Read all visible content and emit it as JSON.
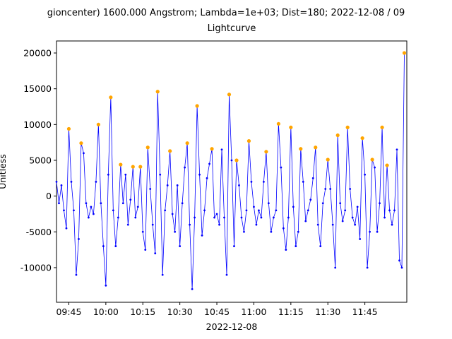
{
  "chart_data": {
    "type": "line",
    "title": "gioncenter) 1600.000 Angstrom; Lambda=1e+03; Dist=180; 2022-12-08 / 09",
    "subtitle": "Lightcurve",
    "xlabel": "2022-12-08",
    "ylabel": "Unitless",
    "x": [
      "09:40",
      "09:41",
      "09:42",
      "09:43",
      "09:44",
      "09:45",
      "09:46",
      "09:47",
      "09:48",
      "09:49",
      "09:50",
      "09:51",
      "09:52",
      "09:53",
      "09:54",
      "09:55",
      "09:56",
      "09:57",
      "09:58",
      "09:59",
      "10:00",
      "10:01",
      "10:02",
      "10:03",
      "10:04",
      "10:05",
      "10:06",
      "10:07",
      "10:08",
      "10:09",
      "10:10",
      "10:11",
      "10:12",
      "10:13",
      "10:14",
      "10:15",
      "10:16",
      "10:17",
      "10:18",
      "10:19",
      "10:20",
      "10:21",
      "10:22",
      "10:23",
      "10:24",
      "10:25",
      "10:26",
      "10:27",
      "10:28",
      "10:29",
      "10:30",
      "10:31",
      "10:32",
      "10:33",
      "10:34",
      "10:35",
      "10:36",
      "10:37",
      "10:38",
      "10:39",
      "10:40",
      "10:41",
      "10:42",
      "10:43",
      "10:44",
      "10:45",
      "10:46",
      "10:47",
      "10:48",
      "10:49",
      "10:50",
      "10:51",
      "10:52",
      "10:53",
      "10:54",
      "10:55",
      "10:56",
      "10:57",
      "10:58",
      "10:59",
      "11:00",
      "11:01",
      "11:02",
      "11:03",
      "11:04",
      "11:05",
      "11:06",
      "11:07",
      "11:08",
      "11:09",
      "11:10",
      "11:11",
      "11:12",
      "11:13",
      "11:14",
      "11:15",
      "11:16",
      "11:17",
      "11:18",
      "11:19",
      "11:20",
      "11:21",
      "11:22",
      "11:23",
      "11:24",
      "11:25",
      "11:26",
      "11:27",
      "11:28",
      "11:29",
      "11:30",
      "11:31",
      "11:32",
      "11:33",
      "11:34",
      "11:35",
      "11:36",
      "11:37",
      "11:38",
      "11:39",
      "11:40",
      "11:41",
      "11:42",
      "11:43",
      "11:44",
      "11:45",
      "11:46",
      "11:47",
      "11:48",
      "11:49",
      "11:50",
      "11:51",
      "11:52",
      "11:53",
      "11:54",
      "11:55",
      "11:56",
      "11:57",
      "11:58",
      "11:59",
      "12:00",
      "12:01"
    ],
    "series": [
      {
        "color": "#0000ff",
        "values": [
          2000,
          -1000,
          1500,
          -2000,
          -4500,
          9400,
          2000,
          -2000,
          -11000,
          -6000,
          7400,
          6000,
          -1000,
          -3000,
          -1500,
          -2500,
          2000,
          10000,
          -1000,
          -7000,
          -12500,
          3000,
          13800,
          -2000,
          -7000,
          -3000,
          4400,
          -1000,
          3000,
          -4000,
          -500,
          4100,
          -3000,
          -1500,
          4100,
          -5000,
          -7500,
          6800,
          1000,
          -4000,
          -8000,
          14600,
          3000,
          -11000,
          -2000,
          1500,
          6300,
          -2500,
          -5000,
          1500,
          -7000,
          -1000,
          4000,
          7400,
          -4000,
          -13000,
          -3000,
          12600,
          3000,
          -5500,
          -2000,
          2500,
          4500,
          6600,
          -3000,
          -2500,
          -4000,
          6500,
          -3000,
          -11000,
          14200,
          5000,
          -7000,
          5000,
          1500,
          -3000,
          -5000,
          -2000,
          7700,
          2000,
          -1500,
          -4000,
          -2000,
          -3000,
          2000,
          6200,
          -1000,
          -5000,
          -3000,
          -2000,
          10100,
          4000,
          -4500,
          -7500,
          -3000,
          9600,
          -1500,
          -7000,
          -5000,
          6600,
          2000,
          -3500,
          -2000,
          -500,
          2500,
          6800,
          -4000,
          -7000,
          -1000,
          1000,
          5100,
          1000,
          -4000,
          -10000,
          8500,
          -1000,
          -3500,
          -2000,
          9600,
          1000,
          -3000,
          -4000,
          -1500,
          -6000,
          8100,
          3000,
          -10000,
          -5000,
          5100,
          4000,
          -5000,
          -1000,
          9600,
          -3000,
          4300,
          -2000,
          -4000,
          -2000,
          6500,
          -9000,
          -10000,
          20000
        ]
      },
      {
        "color": "#ffa500",
        "x": [
          "09:45",
          "09:50",
          "09:57",
          "10:02",
          "10:06",
          "10:11",
          "10:14",
          "10:17",
          "10:21",
          "10:26",
          "10:33",
          "10:37",
          "10:43",
          "10:50",
          "10:53",
          "10:58",
          "11:05",
          "11:10",
          "11:15",
          "11:19",
          "11:25",
          "11:30",
          "11:34",
          "11:38",
          "11:44",
          "11:48",
          "11:52",
          "11:54",
          "12:01"
        ],
        "values": [
          9400,
          7400,
          10000,
          13800,
          4400,
          4100,
          4100,
          6800,
          14600,
          6300,
          7400,
          12600,
          6600,
          14200,
          5000,
          7700,
          6200,
          10100,
          9600,
          6600,
          6800,
          5100,
          8500,
          9600,
          8100,
          5100,
          9600,
          4300,
          20000
        ]
      }
    ],
    "xlim": [
      "09:40",
      "12:02"
    ],
    "xticks": [
      "09:45",
      "10:00",
      "10:15",
      "10:30",
      "10:45",
      "11:00",
      "11:15",
      "11:30",
      "11:45"
    ],
    "ylim": [
      -14840,
      21680
    ],
    "yticks": [
      -10000,
      -5000,
      0,
      5000,
      10000,
      15000,
      20000
    ]
  }
}
